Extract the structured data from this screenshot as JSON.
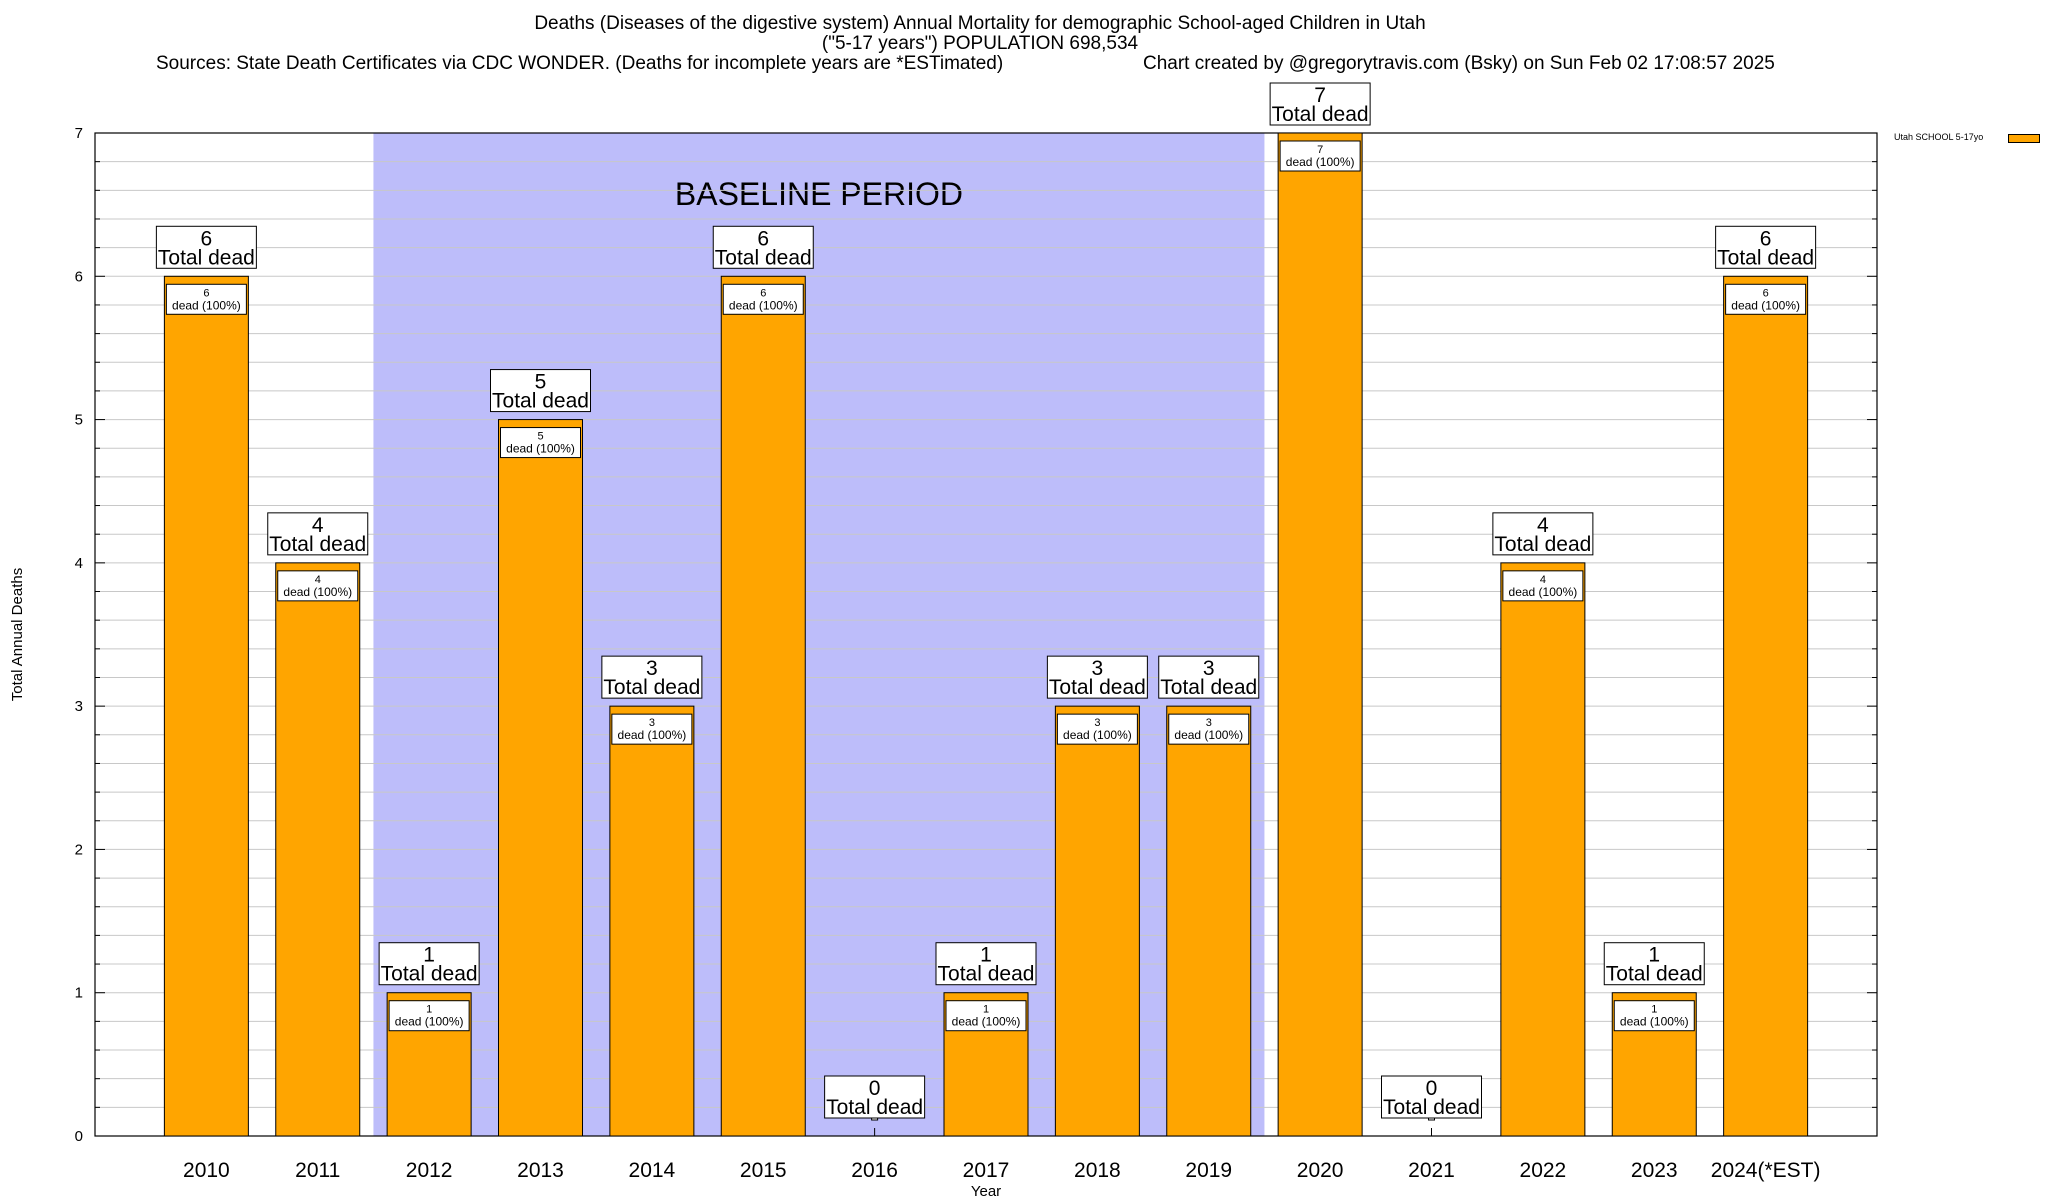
{
  "title": {
    "line1": "Deaths (Diseases of the digestive system) Annual Mortality for demographic School-aged Children in Utah",
    "line2": "(\"5-17 years\") POPULATION 698,534",
    "sources": "Sources: State Death Certificates via CDC WONDER. (Deaths for incomplete years are *ESTimated)",
    "credit": "Chart created by @gregorytravis.com (Bsky) on Sun Feb 02 17:08:57 2025"
  },
  "legend": {
    "label": "Utah SCHOOL 5-17yo",
    "color": "#ffa500"
  },
  "baseline_label": "BASELINE PERIOD",
  "colors": {
    "bar": "#ffa500",
    "baseline": "#bdbdfa",
    "grid": "#c8c8c8"
  },
  "chart_data": {
    "type": "bar",
    "categories": [
      "2010",
      "2011",
      "2012",
      "2013",
      "2014",
      "2015",
      "2016",
      "2017",
      "2018",
      "2019",
      "2020",
      "2021",
      "2022",
      "2023",
      "2024(*EST)"
    ],
    "series": [
      {
        "name": "Utah SCHOOL 5-17yo",
        "values": [
          6,
          4,
          1,
          5,
          3,
          6,
          0,
          1,
          3,
          3,
          7,
          0,
          4,
          1,
          6
        ]
      }
    ],
    "top_labels": [
      "Total dead",
      "Total dead",
      "Total dead",
      "Total dead",
      "Total dead",
      "Total dead",
      "Total dead",
      "Total dead",
      "Total dead",
      "Total dead",
      "Total dead",
      "Total dead",
      "Total dead",
      "Total dead",
      "Total dead"
    ],
    "inner_labels": [
      "dead (100%)",
      "dead (100%)",
      "dead (100%)",
      "dead (100%)",
      "dead (100%)",
      "dead (100%)",
      "",
      "dead (100%)",
      "dead (100%)",
      "dead (100%)",
      "dead (100%)",
      "",
      "dead (100%)",
      "dead (100%)",
      "dead (100%)"
    ],
    "baseline_period": [
      "2012",
      "2019"
    ],
    "xlabel": "Year",
    "ylabel": "Total Annual Deaths",
    "ylim": [
      0,
      7
    ],
    "yticks": [
      "0",
      "1",
      "2",
      "3",
      "4",
      "5",
      "6",
      "7"
    ],
    "grid": true,
    "legend_position": "top-right"
  }
}
